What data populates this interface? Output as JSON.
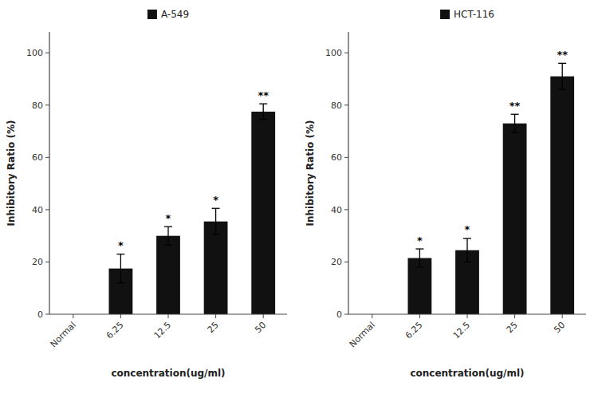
{
  "chart_data": [
    {
      "type": "bar",
      "categories": [
        "Normal",
        "6.25",
        "12.5",
        "25",
        "50"
      ],
      "series": [
        {
          "name": "A-549",
          "color": "#111111",
          "values": [
            0,
            17.5,
            30.0,
            35.5,
            77.5
          ],
          "errors": [
            0,
            5.5,
            3.5,
            5.0,
            3.0
          ],
          "annotations": [
            null,
            "*",
            "*",
            "*",
            "**"
          ]
        }
      ],
      "ylabel": "Inhibitory Ratio (%)",
      "xlabel": "concentration(ug/ml)",
      "ylim": [
        0,
        108
      ],
      "yticks": [
        0,
        20,
        40,
        60,
        80,
        100
      ],
      "grid": false,
      "legend": "top"
    },
    {
      "type": "bar",
      "categories": [
        "Normal",
        "6.25",
        "12.5",
        "25",
        "50"
      ],
      "series": [
        {
          "name": "HCT-116",
          "color": "#111111",
          "values": [
            0,
            21.5,
            24.5,
            73.0,
            91.0
          ],
          "errors": [
            0,
            3.5,
            4.5,
            3.5,
            5.0
          ],
          "annotations": [
            null,
            "*",
            "*",
            "**",
            "**"
          ]
        }
      ],
      "ylabel": "Inhibitory Ratio (%)",
      "xlabel": "concentration(ug/ml)",
      "ylim": [
        0,
        108
      ],
      "yticks": [
        0,
        20,
        40,
        60,
        80,
        100
      ],
      "grid": false,
      "legend": "top"
    }
  ]
}
